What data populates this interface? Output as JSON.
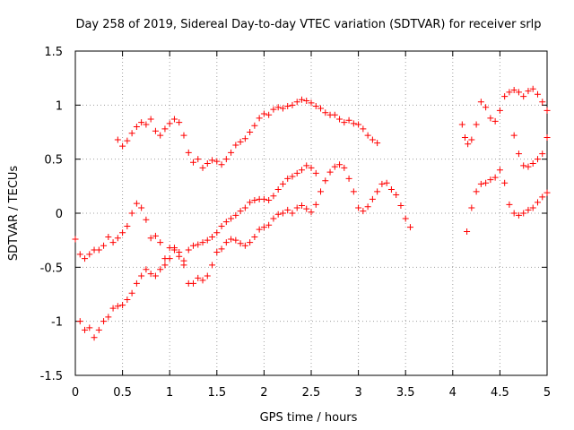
{
  "chart_data": {
    "type": "scatter",
    "title": "Day 258 of 2019, Sidereal Day-to-day VTEC variation (SDTVAR) for receiver srlp",
    "xlabel": "GPS time / hours",
    "ylabel": "SDTVAR / TECUs",
    "xlim": [
      0,
      5
    ],
    "ylim": [
      -1.5,
      1.5
    ],
    "xticks": [
      0,
      0.5,
      1,
      1.5,
      2,
      2.5,
      3,
      3.5,
      4,
      4.5,
      5
    ],
    "xtick_labels": [
      "0",
      "0.5",
      "1",
      "1.5",
      "2",
      "2.5",
      "3",
      "3.5",
      "4",
      "4.5",
      "5"
    ],
    "yticks": [
      -1.5,
      -1,
      -0.5,
      0,
      0.5,
      1,
      1.5
    ],
    "ytick_labels": [
      "-1.5",
      "-1",
      "-0.5",
      "0",
      "0.5",
      "1",
      "1.5"
    ],
    "grid": true,
    "marker": "plus",
    "marker_color": "#ff0000",
    "series": [
      {
        "points": [
          [
            0.45,
            0.68
          ],
          [
            0.5,
            0.62
          ],
          [
            0.55,
            0.67
          ],
          [
            0.6,
            0.74
          ],
          [
            0.65,
            0.8
          ],
          [
            0.7,
            0.84
          ],
          [
            0.75,
            0.82
          ],
          [
            0.8,
            0.87
          ],
          [
            0.85,
            0.76
          ],
          [
            0.9,
            0.72
          ],
          [
            0.95,
            0.78
          ],
          [
            1.0,
            0.83
          ],
          [
            1.05,
            0.87
          ],
          [
            1.1,
            0.84
          ],
          [
            1.15,
            0.72
          ],
          [
            1.2,
            0.56
          ],
          [
            1.25,
            0.47
          ],
          [
            1.3,
            0.5
          ],
          [
            1.35,
            0.42
          ],
          [
            1.4,
            0.46
          ],
          [
            1.45,
            0.49
          ],
          [
            1.5,
            0.48
          ],
          [
            1.55,
            0.45
          ],
          [
            1.6,
            0.5
          ],
          [
            1.65,
            0.56
          ],
          [
            1.7,
            0.63
          ],
          [
            1.75,
            0.66
          ],
          [
            1.8,
            0.69
          ],
          [
            1.85,
            0.75
          ],
          [
            1.9,
            0.81
          ],
          [
            1.95,
            0.88
          ],
          [
            2.0,
            0.92
          ],
          [
            2.05,
            0.91
          ],
          [
            2.1,
            0.96
          ],
          [
            2.15,
            0.98
          ],
          [
            2.2,
            0.97
          ],
          [
            2.25,
            0.99
          ],
          [
            2.3,
            1.0
          ],
          [
            2.35,
            1.03
          ],
          [
            2.4,
            1.05
          ],
          [
            2.45,
            1.04
          ],
          [
            2.5,
            1.02
          ],
          [
            2.55,
            0.99
          ],
          [
            2.6,
            0.97
          ],
          [
            2.65,
            0.93
          ],
          [
            2.7,
            0.91
          ],
          [
            2.75,
            0.91
          ],
          [
            2.8,
            0.87
          ],
          [
            2.85,
            0.84
          ],
          [
            2.9,
            0.86
          ],
          [
            2.95,
            0.83
          ],
          [
            3.0,
            0.82
          ],
          [
            3.05,
            0.78
          ],
          [
            3.1,
            0.72
          ],
          [
            3.15,
            0.68
          ],
          [
            3.2,
            0.65
          ]
        ]
      },
      {
        "points": [
          [
            0.0,
            -0.24
          ],
          [
            0.05,
            -0.38
          ],
          [
            0.1,
            -0.42
          ],
          [
            0.15,
            -0.38
          ],
          [
            0.2,
            -0.34
          ],
          [
            0.25,
            -0.34
          ],
          [
            0.3,
            -0.3
          ],
          [
            0.35,
            -0.22
          ],
          [
            0.4,
            -0.27
          ],
          [
            0.45,
            -0.23
          ],
          [
            0.5,
            -0.18
          ],
          [
            0.55,
            -0.12
          ],
          [
            0.6,
            0.0
          ],
          [
            0.65,
            0.09
          ],
          [
            0.7,
            0.05
          ],
          [
            0.75,
            -0.06
          ],
          [
            0.8,
            -0.23
          ],
          [
            0.85,
            -0.21
          ],
          [
            0.9,
            -0.27
          ],
          [
            0.95,
            -0.42
          ],
          [
            1.0,
            -0.32
          ],
          [
            1.05,
            -0.34
          ],
          [
            1.1,
            -0.4
          ],
          [
            1.15,
            -0.48
          ],
          [
            1.2,
            -0.65
          ],
          [
            1.25,
            -0.65
          ],
          [
            1.3,
            -0.6
          ],
          [
            1.35,
            -0.62
          ],
          [
            1.4,
            -0.58
          ],
          [
            1.45,
            -0.48
          ],
          [
            1.5,
            -0.36
          ],
          [
            1.55,
            -0.33
          ],
          [
            1.6,
            -0.27
          ],
          [
            1.65,
            -0.24
          ],
          [
            1.7,
            -0.25
          ],
          [
            1.75,
            -0.28
          ],
          [
            1.8,
            -0.3
          ],
          [
            1.85,
            -0.27
          ],
          [
            1.9,
            -0.22
          ],
          [
            1.95,
            -0.15
          ],
          [
            2.0,
            -0.13
          ],
          [
            2.05,
            -0.11
          ],
          [
            2.1,
            -0.05
          ],
          [
            2.15,
            -0.01
          ],
          [
            2.2,
            0.0
          ],
          [
            2.25,
            0.03
          ],
          [
            2.3,
            0.0
          ],
          [
            2.35,
            0.05
          ],
          [
            2.4,
            0.07
          ],
          [
            2.45,
            0.04
          ],
          [
            2.5,
            0.01
          ],
          [
            2.55,
            0.08
          ],
          [
            2.6,
            0.2
          ],
          [
            2.65,
            0.3
          ],
          [
            2.7,
            0.38
          ],
          [
            2.75,
            0.43
          ],
          [
            2.8,
            0.45
          ],
          [
            2.85,
            0.42
          ],
          [
            2.9,
            0.32
          ],
          [
            2.95,
            0.2
          ],
          [
            3.0,
            0.05
          ],
          [
            3.05,
            0.02
          ],
          [
            3.1,
            0.06
          ],
          [
            3.15,
            0.13
          ],
          [
            3.2,
            0.2
          ],
          [
            3.25,
            0.27
          ],
          [
            3.3,
            0.28
          ],
          [
            3.35,
            0.22
          ],
          [
            3.4,
            0.17
          ],
          [
            3.45,
            0.07
          ],
          [
            3.5,
            -0.05
          ],
          [
            3.55,
            -0.13
          ]
        ]
      },
      {
        "points": [
          [
            0.05,
            -1.0
          ],
          [
            0.1,
            -1.08
          ],
          [
            0.15,
            -1.06
          ],
          [
            0.2,
            -1.15
          ],
          [
            0.25,
            -1.08
          ],
          [
            0.3,
            -1.0
          ],
          [
            0.35,
            -0.96
          ],
          [
            0.4,
            -0.88
          ],
          [
            0.45,
            -0.86
          ],
          [
            0.5,
            -0.85
          ],
          [
            0.55,
            -0.8
          ],
          [
            0.6,
            -0.74
          ],
          [
            0.65,
            -0.65
          ],
          [
            0.7,
            -0.58
          ],
          [
            0.75,
            -0.52
          ],
          [
            0.8,
            -0.56
          ],
          [
            0.85,
            -0.58
          ],
          [
            0.9,
            -0.52
          ],
          [
            0.95,
            -0.48
          ],
          [
            1.0,
            -0.42
          ],
          [
            1.05,
            -0.32
          ],
          [
            1.1,
            -0.36
          ],
          [
            1.15,
            -0.44
          ],
          [
            1.2,
            -0.34
          ],
          [
            1.25,
            -0.3
          ],
          [
            1.3,
            -0.29
          ],
          [
            1.35,
            -0.27
          ],
          [
            1.4,
            -0.25
          ],
          [
            1.45,
            -0.22
          ],
          [
            1.5,
            -0.18
          ],
          [
            1.55,
            -0.12
          ],
          [
            1.6,
            -0.08
          ],
          [
            1.65,
            -0.05
          ],
          [
            1.7,
            -0.02
          ],
          [
            1.75,
            0.02
          ],
          [
            1.8,
            0.05
          ],
          [
            1.85,
            0.1
          ],
          [
            1.9,
            0.12
          ],
          [
            1.95,
            0.13
          ],
          [
            2.0,
            0.13
          ],
          [
            2.05,
            0.12
          ],
          [
            2.1,
            0.16
          ],
          [
            2.15,
            0.22
          ],
          [
            2.2,
            0.27
          ],
          [
            2.25,
            0.32
          ],
          [
            2.3,
            0.34
          ],
          [
            2.35,
            0.37
          ],
          [
            2.4,
            0.4
          ],
          [
            2.45,
            0.44
          ],
          [
            2.5,
            0.42
          ],
          [
            2.55,
            0.37
          ]
        ]
      },
      {
        "points": [
          [
            4.1,
            0.82
          ],
          [
            4.13,
            0.7
          ],
          [
            4.16,
            0.64
          ],
          [
            4.2,
            0.68
          ],
          [
            4.25,
            0.82
          ],
          [
            4.3,
            1.03
          ],
          [
            4.35,
            0.98
          ],
          [
            4.4,
            0.88
          ],
          [
            4.45,
            0.85
          ],
          [
            4.5,
            0.95
          ],
          [
            4.55,
            1.08
          ],
          [
            4.6,
            1.12
          ],
          [
            4.65,
            1.14
          ],
          [
            4.7,
            1.12
          ],
          [
            4.75,
            1.08
          ],
          [
            4.8,
            1.13
          ],
          [
            4.85,
            1.15
          ],
          [
            4.9,
            1.1
          ],
          [
            4.95,
            1.03
          ],
          [
            5.0,
            0.95
          ]
        ]
      },
      {
        "points": [
          [
            4.15,
            -0.17
          ],
          [
            4.2,
            0.05
          ],
          [
            4.25,
            0.2
          ],
          [
            4.3,
            0.27
          ],
          [
            4.35,
            0.28
          ],
          [
            4.4,
            0.31
          ],
          [
            4.45,
            0.33
          ],
          [
            4.5,
            0.4
          ],
          [
            4.55,
            0.28
          ],
          [
            4.6,
            0.08
          ],
          [
            4.65,
            0.0
          ],
          [
            4.7,
            -0.02
          ],
          [
            4.75,
            0.0
          ],
          [
            4.8,
            0.03
          ],
          [
            4.85,
            0.05
          ],
          [
            4.9,
            0.1
          ],
          [
            4.95,
            0.15
          ],
          [
            5.0,
            0.19
          ]
        ]
      },
      {
        "points": [
          [
            4.65,
            0.72
          ],
          [
            4.7,
            0.55
          ],
          [
            4.75,
            0.44
          ],
          [
            4.8,
            0.43
          ],
          [
            4.85,
            0.46
          ],
          [
            4.9,
            0.5
          ],
          [
            4.95,
            0.55
          ],
          [
            5.0,
            0.7
          ]
        ]
      }
    ]
  }
}
